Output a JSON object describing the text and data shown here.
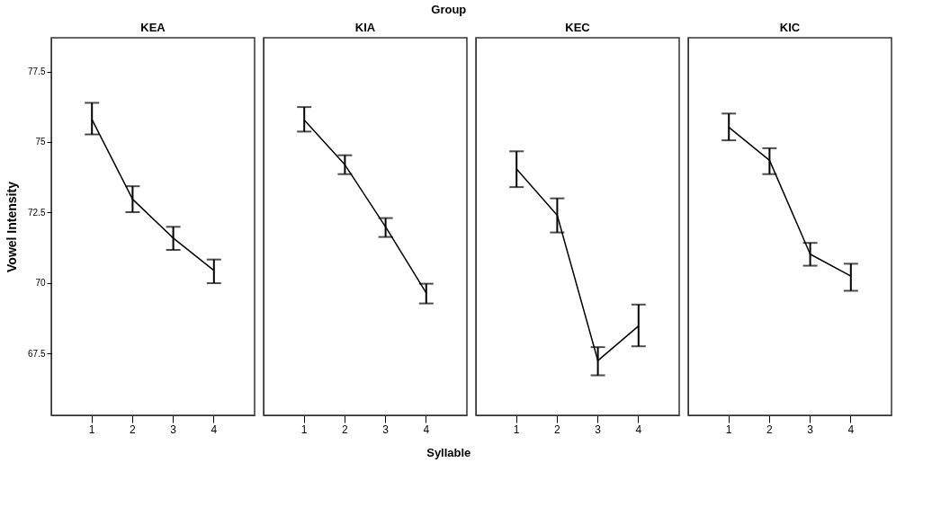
{
  "chart_data": [
    {
      "type": "line",
      "title": "KEA",
      "annotations": [
        "Group",
        "Syllable"
      ],
      "ylabel": "Vowel Intensity",
      "categories": [
        "1",
        "2",
        "3",
        "4"
      ],
      "ylim": [
        65.3,
        78.7
      ],
      "yticks": [
        67.5,
        70,
        72.5,
        75,
        77.5
      ],
      "grid": false,
      "series": [
        {
          "color": "#000000",
          "values": [
            75.8,
            72.97,
            71.59,
            70.44
          ],
          "errors": [
            [
              75.27,
              76.39
            ],
            [
              72.51,
              73.43
            ],
            [
              71.17,
              71.99
            ],
            [
              69.99,
              70.83
            ]
          ]
        }
      ]
    },
    {
      "type": "line",
      "title": "KIA",
      "categories": [
        "1",
        "2",
        "3",
        "4"
      ],
      "ylim": [
        65.3,
        78.7
      ],
      "yticks": [
        67.5,
        70,
        72.5,
        75,
        77.5
      ],
      "grid": false,
      "tick_labels": "x",
      "series": [
        {
          "color": "#000000",
          "values": [
            75.78,
            74.19,
            71.99,
            69.64
          ],
          "errors": [
            [
              75.37,
              76.24
            ],
            [
              73.86,
              74.53
            ],
            [
              71.63,
              72.3
            ],
            [
              69.27,
              69.97
            ]
          ]
        }
      ]
    },
    {
      "type": "line",
      "title": "KEC",
      "categories": [
        "1",
        "2",
        "3",
        "4"
      ],
      "ylim": [
        65.3,
        78.7
      ],
      "yticks": [
        67.5,
        70,
        72.5,
        75,
        77.5
      ],
      "grid": false,
      "tick_labels": "x",
      "series": [
        {
          "color": "#000000",
          "values": [
            74.04,
            72.4,
            67.24,
            68.47
          ],
          "errors": [
            [
              73.4,
              74.67
            ],
            [
              71.79,
              73.0
            ],
            [
              66.72,
              67.72
            ],
            [
              67.75,
              69.23
            ]
          ]
        }
      ]
    },
    {
      "type": "line",
      "title": "KIC",
      "categories": [
        "1",
        "2",
        "3",
        "4"
      ],
      "ylim": [
        65.3,
        78.7
      ],
      "yticks": [
        67.5,
        70,
        72.5,
        75,
        77.5
      ],
      "grid": false,
      "tick_labels": "x",
      "series": [
        {
          "color": "#000000",
          "values": [
            75.52,
            74.35,
            71.02,
            70.24
          ],
          "errors": [
            [
              75.06,
              76.01
            ],
            [
              73.86,
              74.78
            ],
            [
              70.61,
              71.42
            ],
            [
              69.72,
              70.68
            ]
          ]
        }
      ]
    }
  ]
}
